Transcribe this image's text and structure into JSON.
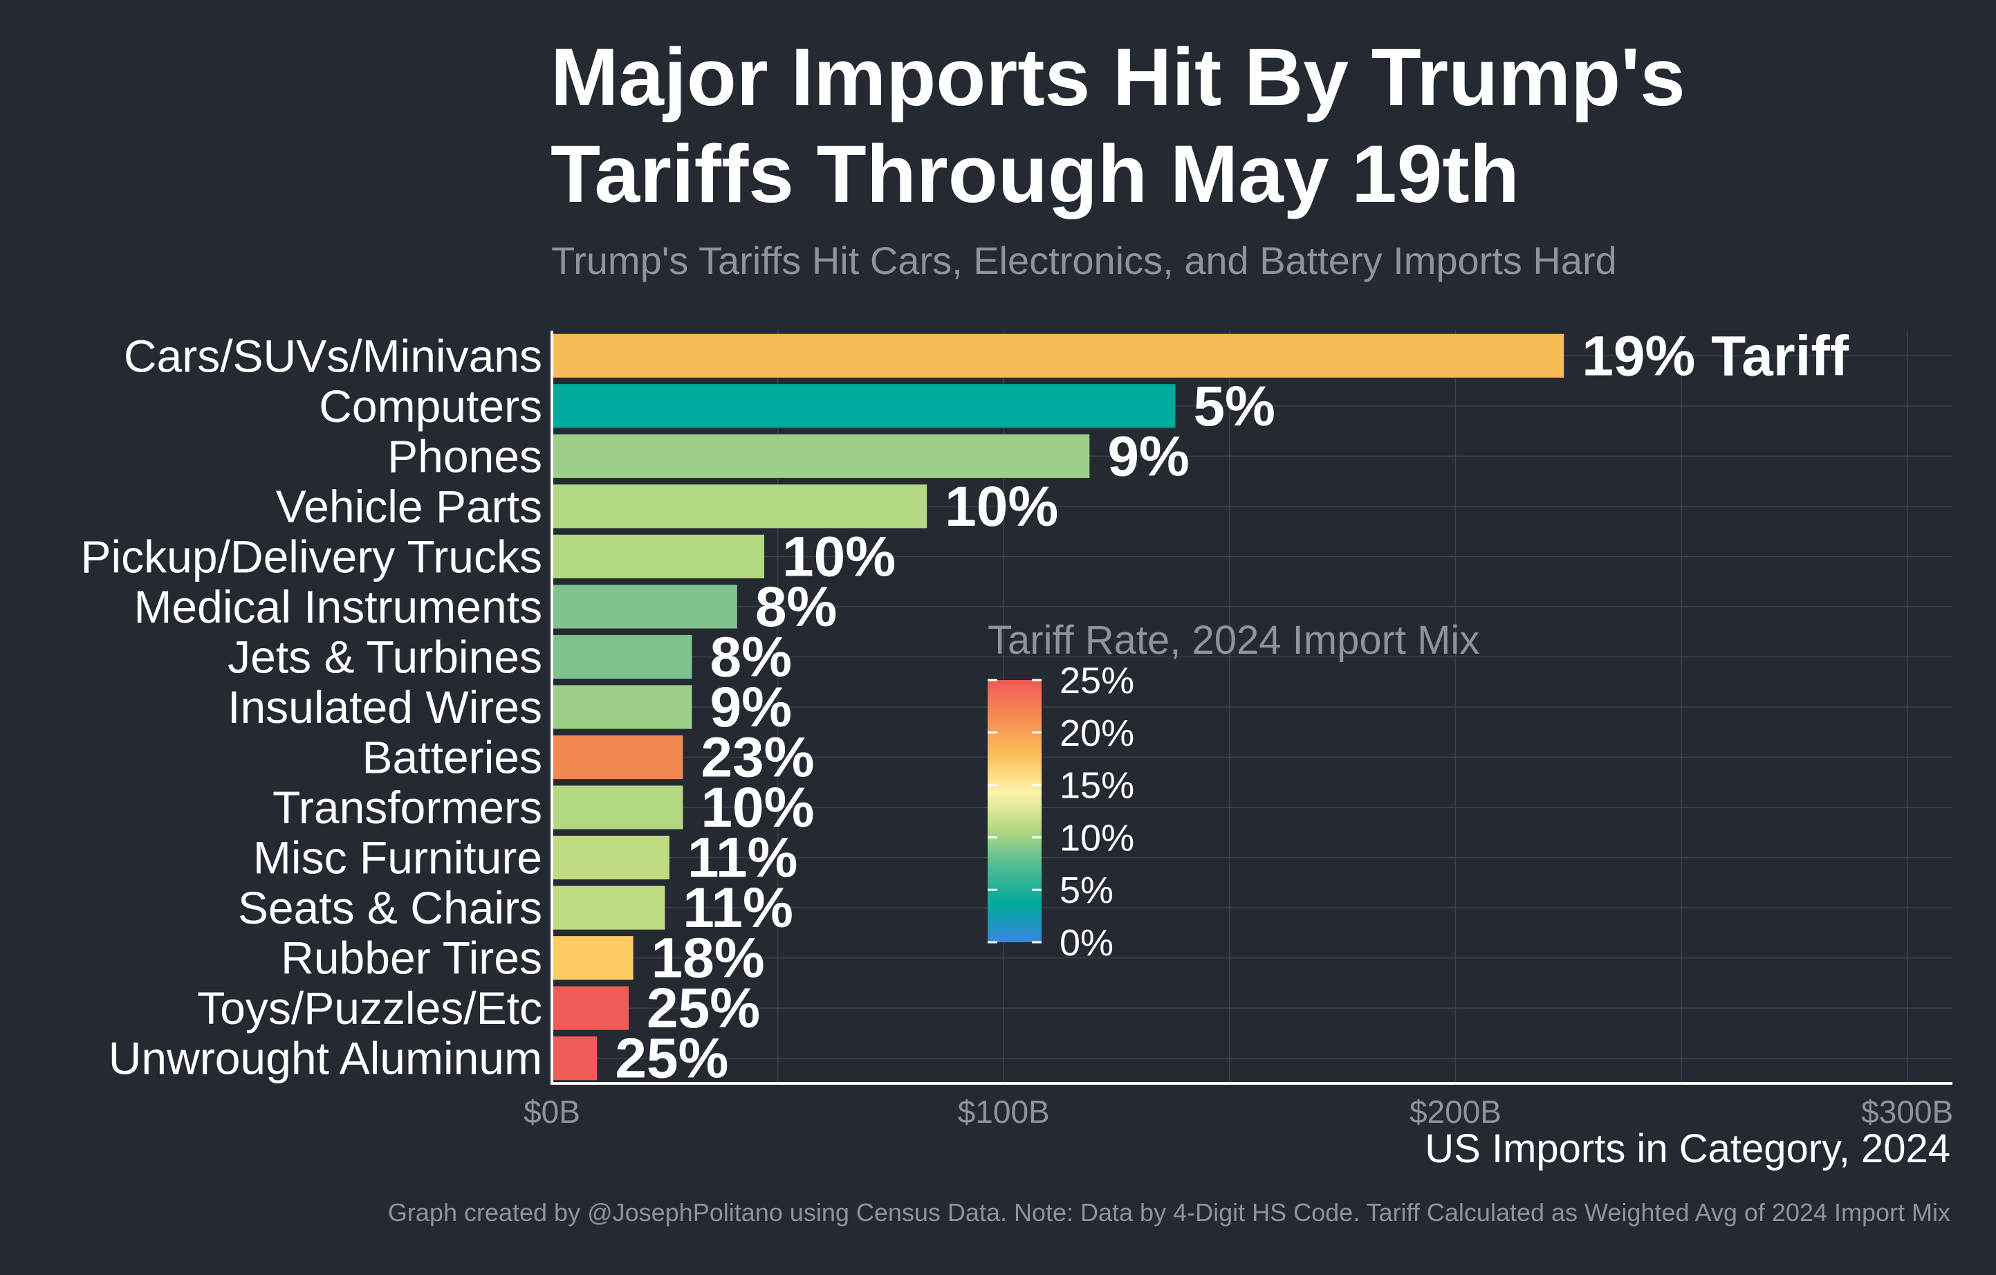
{
  "title_line1": "Major Imports Hit By Trump's",
  "title_line2": "Tariffs Through May 19th",
  "subtitle": "Trump's Tariffs Hit Cars, Electronics, and Battery Imports Hard",
  "caption": "Graph created by @JosephPolitano using Census Data. Note: Data by 4-Digit HS Code. Tariff Calculated as Weighted Avg of 2024 Import Mix",
  "chart_data": {
    "type": "bar",
    "orientation": "horizontal",
    "title": "Major Imports Hit By Trump's Tariffs Through May 19th",
    "xlabel": "US Imports in Category, 2024",
    "xlim": [
      0,
      310
    ],
    "x_ticks": [
      {
        "value": 0,
        "label": "$0B"
      },
      {
        "value": 100,
        "label": "$100B"
      },
      {
        "value": 200,
        "label": "$200B"
      },
      {
        "value": 300,
        "label": "$300B"
      }
    ],
    "categories": [
      "Cars/SUVs/Minivans",
      "Computers",
      "Phones",
      "Vehicle Parts",
      "Pickup/Delivery Trucks",
      "Medical Instruments",
      "Jets & Turbines",
      "Insulated Wires",
      "Batteries",
      "Transformers",
      "Misc Furniture",
      "Seats & Chairs",
      "Rubber Tires",
      "Toys/Puzzles/Etc",
      "Unwrought Aluminum"
    ],
    "values": [
      224,
      138,
      119,
      83,
      47,
      41,
      31,
      31,
      29,
      29,
      26,
      25,
      18,
      17,
      10
    ],
    "labels": [
      "19% Tariff",
      "5%",
      "9%",
      "10%",
      "10%",
      "8%",
      "8%",
      "9%",
      "23%",
      "10%",
      "11%",
      "11%",
      "18%",
      "25%",
      "25%"
    ],
    "tariff_rates": [
      19,
      5,
      9,
      10,
      10,
      8,
      8,
      9,
      23,
      10,
      11,
      11,
      18,
      25,
      25
    ],
    "bar_colors": [
      "#f8bc55",
      "#00aa9d",
      "#9ccf88",
      "#b2d881",
      "#b2d881",
      "#7fc38c",
      "#7fc38c",
      "#9ccf88",
      "#f28851",
      "#b2d881",
      "#c0dc82",
      "#c0dc82",
      "#fdcb63",
      "#ef5b57",
      "#ef5b57"
    ],
    "legend": {
      "title": "Tariff Rate, 2024 Import Mix",
      "ticks": [
        "25%",
        "20%",
        "15%",
        "10%",
        "5%",
        "0%"
      ],
      "gradient": [
        "#ef5b57",
        "#f58c52",
        "#fbbf59",
        "#fdf3a9",
        "#b2d881",
        "#4dbb94",
        "#00aa9d",
        "#3a84e0"
      ]
    },
    "colors": {
      "background": "#252932",
      "grid": "#3c414b",
      "axis": "#ffffff",
      "tick_text": "#8f949c",
      "text": "#ffffff"
    }
  }
}
